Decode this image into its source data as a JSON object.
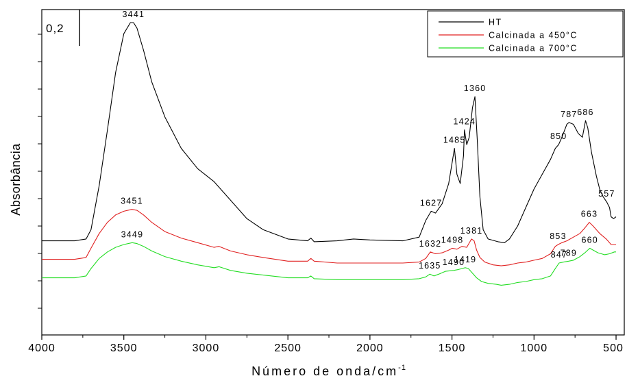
{
  "chart_data": {
    "type": "line",
    "xlabel": "Número de onda/cm",
    "xlabel_sup": "-1",
    "ylabel": "Absorbância",
    "xlim": [
      4000,
      450
    ],
    "x_ticks": [
      "4000",
      "3500",
      "3000",
      "2500",
      "2000",
      "1500",
      "1000",
      "500"
    ],
    "scale_bar_label": "0,2",
    "legend_position": "top-right",
    "series": [
      {
        "name": "HT",
        "color": "#000000",
        "points": [
          [
            4000,
            0.02
          ],
          [
            3800,
            0.02
          ],
          [
            3730,
            0.03
          ],
          [
            3700,
            0.08
          ],
          [
            3650,
            0.32
          ],
          [
            3600,
            0.62
          ],
          [
            3550,
            0.93
          ],
          [
            3500,
            1.14
          ],
          [
            3460,
            1.2
          ],
          [
            3441,
            1.2
          ],
          [
            3420,
            1.17
          ],
          [
            3380,
            1.05
          ],
          [
            3330,
            0.88
          ],
          [
            3250,
            0.69
          ],
          [
            3150,
            0.52
          ],
          [
            3050,
            0.41
          ],
          [
            2950,
            0.34
          ],
          [
            2850,
            0.24
          ],
          [
            2750,
            0.14
          ],
          [
            2650,
            0.08
          ],
          [
            2500,
            0.03
          ],
          [
            2380,
            0.02
          ],
          [
            2360,
            0.035
          ],
          [
            2340,
            0.015
          ],
          [
            2200,
            0.02
          ],
          [
            2100,
            0.03
          ],
          [
            2000,
            0.025
          ],
          [
            1800,
            0.02
          ],
          [
            1700,
            0.04
          ],
          [
            1660,
            0.13
          ],
          [
            1627,
            0.18
          ],
          [
            1600,
            0.17
          ],
          [
            1560,
            0.22
          ],
          [
            1520,
            0.33
          ],
          [
            1485,
            0.52
          ],
          [
            1470,
            0.38
          ],
          [
            1450,
            0.33
          ],
          [
            1430,
            0.48
          ],
          [
            1424,
            0.62
          ],
          [
            1410,
            0.54
          ],
          [
            1395,
            0.58
          ],
          [
            1375,
            0.74
          ],
          [
            1360,
            0.8
          ],
          [
            1345,
            0.55
          ],
          [
            1330,
            0.26
          ],
          [
            1310,
            0.08
          ],
          [
            1280,
            0.03
          ],
          [
            1220,
            0.015
          ],
          [
            1180,
            0.01
          ],
          [
            1150,
            0.03
          ],
          [
            1100,
            0.1
          ],
          [
            1050,
            0.2
          ],
          [
            1000,
            0.3
          ],
          [
            950,
            0.38
          ],
          [
            900,
            0.46
          ],
          [
            870,
            0.52
          ],
          [
            850,
            0.54
          ],
          [
            830,
            0.58
          ],
          [
            800,
            0.65
          ],
          [
            787,
            0.66
          ],
          [
            760,
            0.65
          ],
          [
            730,
            0.6
          ],
          [
            705,
            0.58
          ],
          [
            686,
            0.67
          ],
          [
            672,
            0.63
          ],
          [
            650,
            0.5
          ],
          [
            620,
            0.37
          ],
          [
            600,
            0.3
          ],
          [
            580,
            0.26
          ],
          [
            557,
            0.23
          ],
          [
            540,
            0.2
          ],
          [
            530,
            0.15
          ],
          [
            515,
            0.14
          ],
          [
            500,
            0.15
          ]
        ]
      },
      {
        "name": "Calcinada a 450°C",
        "color": "#e02020",
        "points": [
          [
            4000,
            -0.08
          ],
          [
            3800,
            -0.08
          ],
          [
            3730,
            -0.07
          ],
          [
            3700,
            -0.02
          ],
          [
            3650,
            0.06
          ],
          [
            3600,
            0.12
          ],
          [
            3550,
            0.16
          ],
          [
            3500,
            0.18
          ],
          [
            3451,
            0.19
          ],
          [
            3420,
            0.185
          ],
          [
            3380,
            0.16
          ],
          [
            3330,
            0.12
          ],
          [
            3250,
            0.07
          ],
          [
            3150,
            0.035
          ],
          [
            3050,
            0.01
          ],
          [
            2950,
            -0.015
          ],
          [
            2920,
            -0.01
          ],
          [
            2850,
            -0.035
          ],
          [
            2750,
            -0.055
          ],
          [
            2650,
            -0.07
          ],
          [
            2500,
            -0.09
          ],
          [
            2380,
            -0.09
          ],
          [
            2360,
            -0.075
          ],
          [
            2340,
            -0.09
          ],
          [
            2200,
            -0.1
          ],
          [
            2000,
            -0.1
          ],
          [
            1800,
            -0.1
          ],
          [
            1700,
            -0.095
          ],
          [
            1660,
            -0.075
          ],
          [
            1632,
            -0.04
          ],
          [
            1600,
            -0.05
          ],
          [
            1560,
            -0.045
          ],
          [
            1520,
            -0.03
          ],
          [
            1498,
            -0.02
          ],
          [
            1470,
            -0.025
          ],
          [
            1440,
            -0.01
          ],
          [
            1410,
            -0.015
          ],
          [
            1381,
            0.03
          ],
          [
            1365,
            0.02
          ],
          [
            1350,
            -0.03
          ],
          [
            1330,
            -0.07
          ],
          [
            1300,
            -0.095
          ],
          [
            1250,
            -0.11
          ],
          [
            1200,
            -0.115
          ],
          [
            1150,
            -0.11
          ],
          [
            1100,
            -0.1
          ],
          [
            1050,
            -0.095
          ],
          [
            1000,
            -0.085
          ],
          [
            950,
            -0.075
          ],
          [
            900,
            -0.05
          ],
          [
            870,
            -0.01
          ],
          [
            853,
            0.0
          ],
          [
            830,
            0.01
          ],
          [
            800,
            0.02
          ],
          [
            760,
            0.04
          ],
          [
            720,
            0.06
          ],
          [
            690,
            0.09
          ],
          [
            663,
            0.12
          ],
          [
            640,
            0.1
          ],
          [
            600,
            0.06
          ],
          [
            560,
            0.03
          ],
          [
            530,
            0.0
          ],
          [
            500,
            0.0
          ]
        ]
      },
      {
        "name": "Calcinada a 700°C",
        "color": "#22dd22",
        "points": [
          [
            4000,
            -0.18
          ],
          [
            3800,
            -0.18
          ],
          [
            3730,
            -0.17
          ],
          [
            3700,
            -0.13
          ],
          [
            3650,
            -0.075
          ],
          [
            3600,
            -0.04
          ],
          [
            3550,
            -0.015
          ],
          [
            3500,
            0.0
          ],
          [
            3449,
            0.01
          ],
          [
            3420,
            0.005
          ],
          [
            3380,
            -0.01
          ],
          [
            3330,
            -0.035
          ],
          [
            3250,
            -0.065
          ],
          [
            3150,
            -0.09
          ],
          [
            3050,
            -0.11
          ],
          [
            2950,
            -0.125
          ],
          [
            2920,
            -0.12
          ],
          [
            2850,
            -0.14
          ],
          [
            2750,
            -0.155
          ],
          [
            2650,
            -0.165
          ],
          [
            2500,
            -0.18
          ],
          [
            2380,
            -0.18
          ],
          [
            2360,
            -0.17
          ],
          [
            2340,
            -0.185
          ],
          [
            2200,
            -0.19
          ],
          [
            2000,
            -0.19
          ],
          [
            1800,
            -0.19
          ],
          [
            1700,
            -0.185
          ],
          [
            1660,
            -0.175
          ],
          [
            1635,
            -0.16
          ],
          [
            1610,
            -0.17
          ],
          [
            1580,
            -0.16
          ],
          [
            1540,
            -0.145
          ],
          [
            1490,
            -0.14
          ],
          [
            1460,
            -0.135
          ],
          [
            1419,
            -0.125
          ],
          [
            1400,
            -0.13
          ],
          [
            1380,
            -0.15
          ],
          [
            1350,
            -0.18
          ],
          [
            1320,
            -0.2
          ],
          [
            1280,
            -0.21
          ],
          [
            1230,
            -0.215
          ],
          [
            1200,
            -0.22
          ],
          [
            1150,
            -0.215
          ],
          [
            1100,
            -0.205
          ],
          [
            1050,
            -0.2
          ],
          [
            1000,
            -0.19
          ],
          [
            950,
            -0.185
          ],
          [
            900,
            -0.17
          ],
          [
            870,
            -0.13
          ],
          [
            847,
            -0.1
          ],
          [
            820,
            -0.095
          ],
          [
            789,
            -0.09
          ],
          [
            760,
            -0.085
          ],
          [
            720,
            -0.065
          ],
          [
            690,
            -0.045
          ],
          [
            660,
            -0.02
          ],
          [
            640,
            -0.03
          ],
          [
            610,
            -0.045
          ],
          [
            570,
            -0.055
          ],
          [
            540,
            -0.05
          ],
          [
            510,
            -0.04
          ],
          [
            500,
            -0.04
          ]
        ]
      }
    ],
    "peak_labels": [
      {
        "text": "3441",
        "x": 3441,
        "y": 1.2,
        "series": 0
      },
      {
        "text": "1627",
        "x": 1627,
        "y": 0.18,
        "series": 0
      },
      {
        "text": "1485",
        "x": 1485,
        "y": 0.52,
        "series": 0
      },
      {
        "text": "1424",
        "x": 1424,
        "y": 0.62,
        "series": 0
      },
      {
        "text": "1360",
        "x": 1360,
        "y": 0.8,
        "series": 0
      },
      {
        "text": "850",
        "x": 850,
        "y": 0.54,
        "series": 0
      },
      {
        "text": "787",
        "x": 787,
        "y": 0.66,
        "series": 0
      },
      {
        "text": "686",
        "x": 686,
        "y": 0.67,
        "series": 0
      },
      {
        "text": "557",
        "x": 557,
        "y": 0.23,
        "series": 0
      },
      {
        "text": "3451",
        "x": 3451,
        "y": 0.19,
        "series": 1
      },
      {
        "text": "1632",
        "x": 1632,
        "y": -0.04,
        "series": 1
      },
      {
        "text": "1498",
        "x": 1498,
        "y": -0.02,
        "series": 1
      },
      {
        "text": "1381",
        "x": 1381,
        "y": 0.03,
        "series": 1
      },
      {
        "text": "853",
        "x": 853,
        "y": 0.0,
        "series": 1
      },
      {
        "text": "663",
        "x": 663,
        "y": 0.12,
        "series": 1
      },
      {
        "text": "3449",
        "x": 3449,
        "y": 0.01,
        "series": 2
      },
      {
        "text": "1635",
        "x": 1635,
        "y": -0.16,
        "series": 2
      },
      {
        "text": "1490",
        "x": 1490,
        "y": -0.14,
        "series": 2
      },
      {
        "text": "1419",
        "x": 1419,
        "y": -0.125,
        "series": 2
      },
      {
        "text": "847",
        "x": 847,
        "y": -0.1,
        "series": 2
      },
      {
        "text": "789",
        "x": 789,
        "y": -0.09,
        "series": 2
      },
      {
        "text": "660",
        "x": 660,
        "y": -0.02,
        "series": 2
      }
    ]
  }
}
